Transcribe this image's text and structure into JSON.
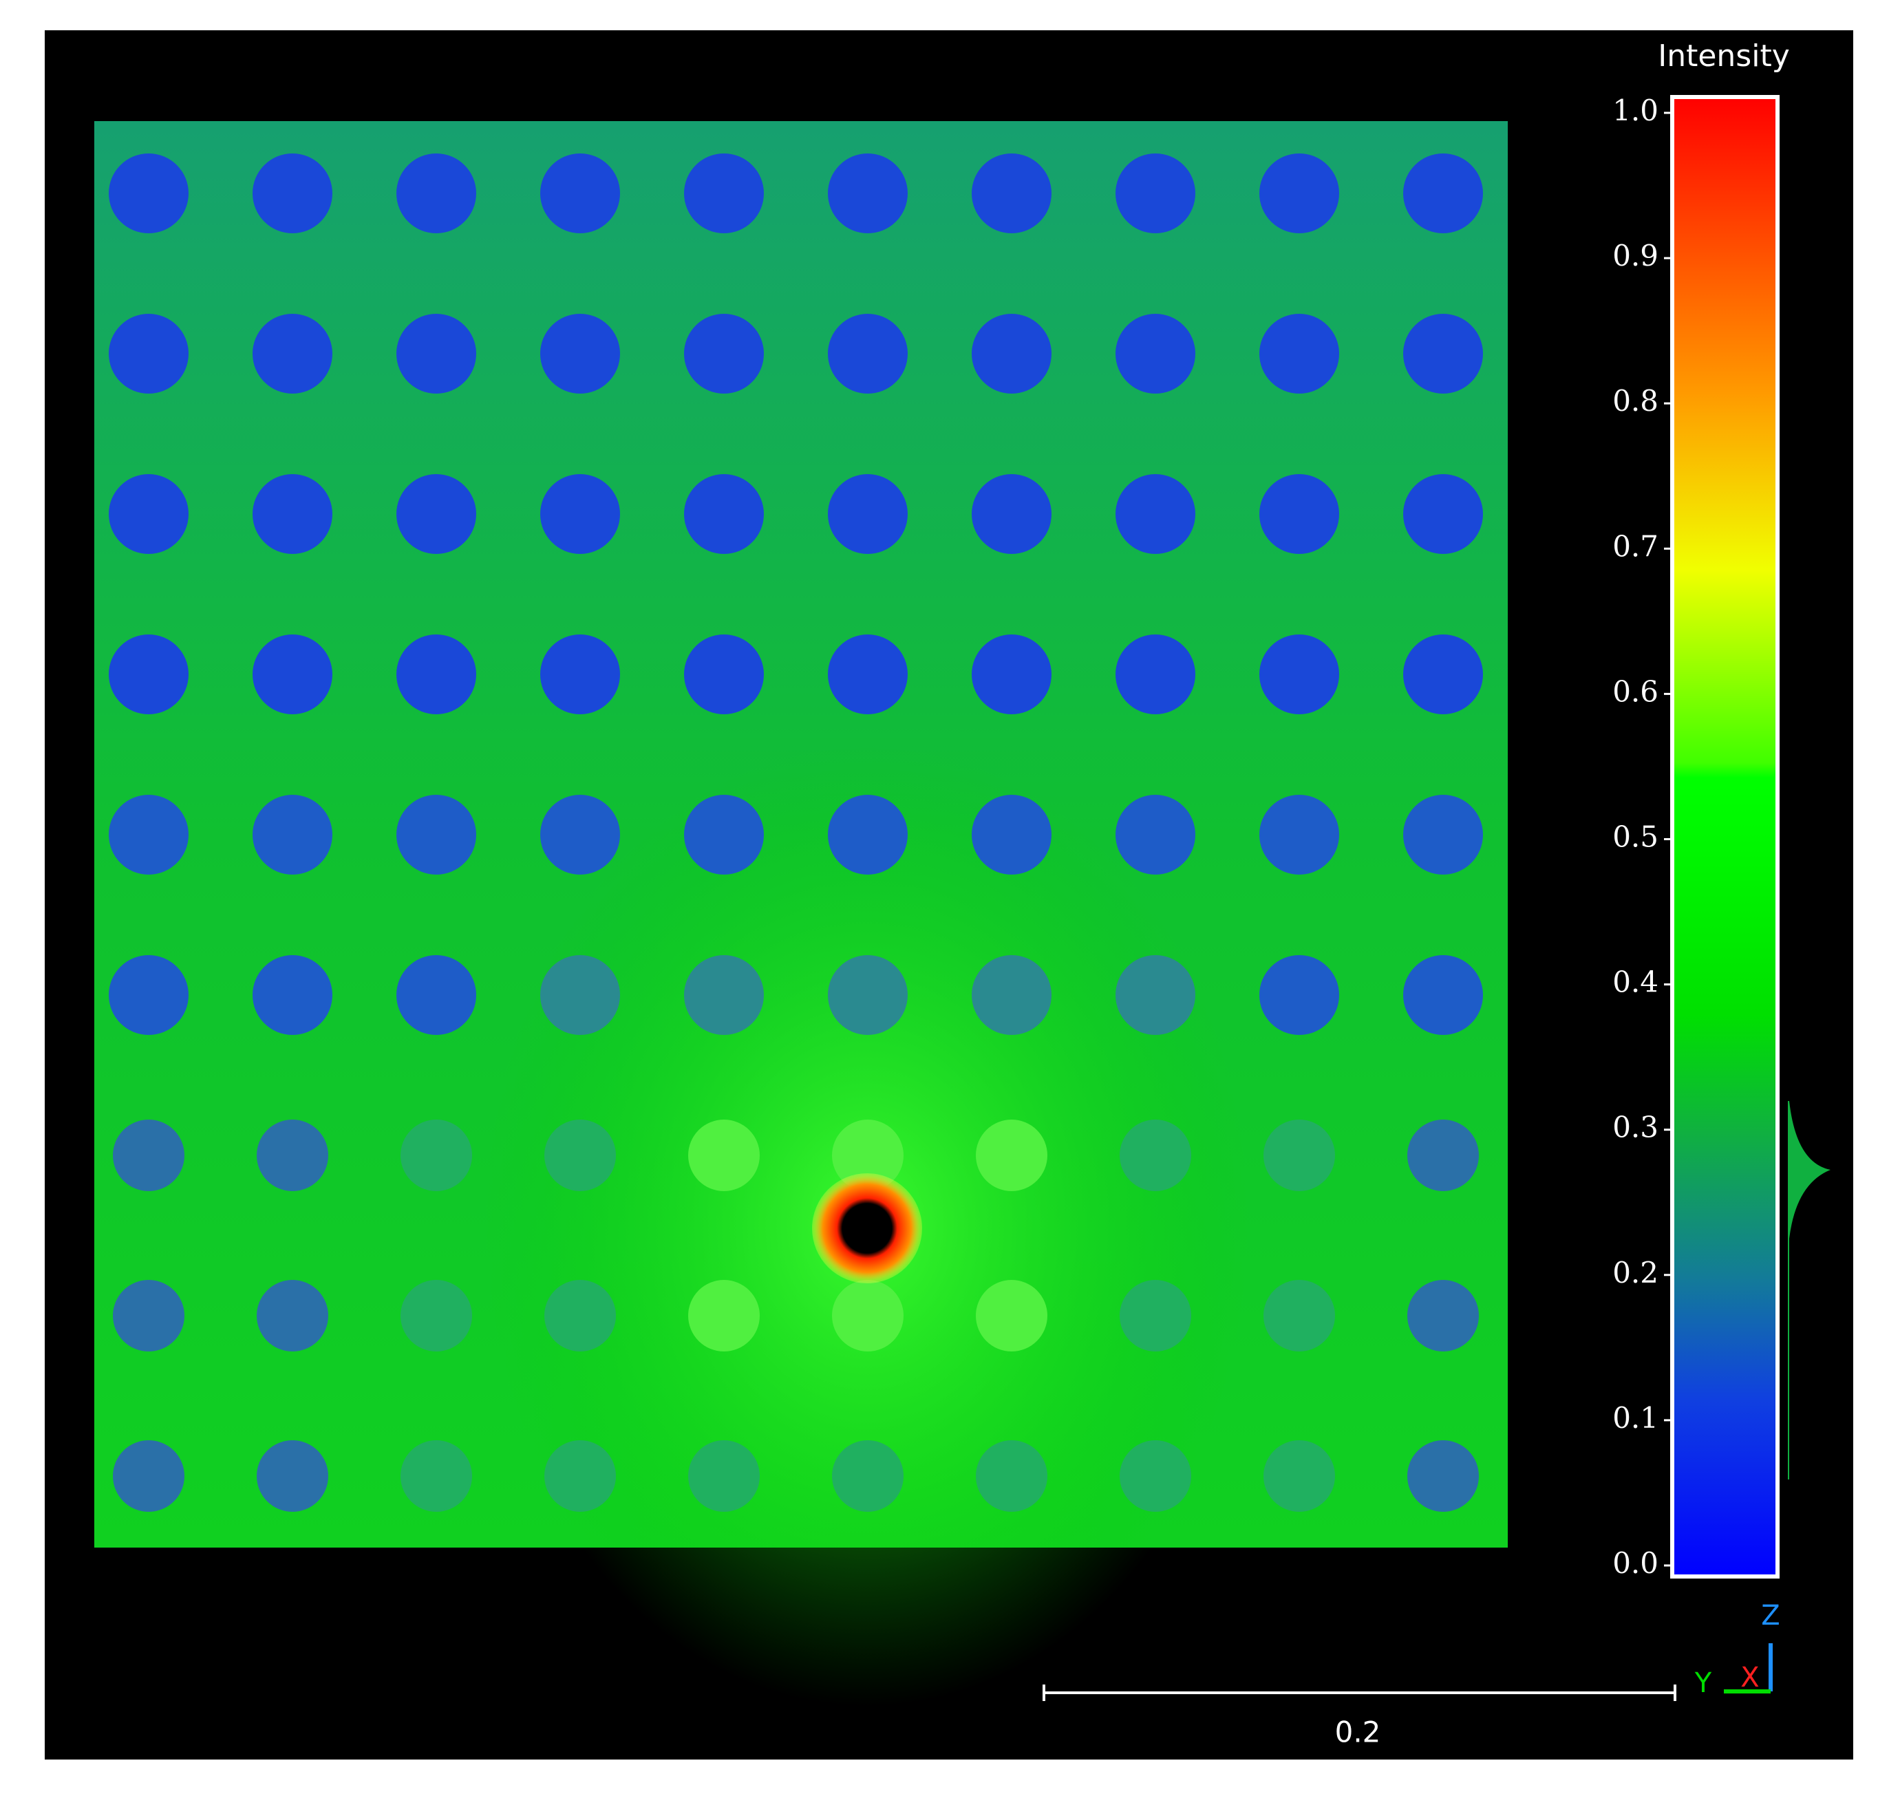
{
  "viewer": {
    "scalar_bar": {
      "title": "Intensity",
      "ticks": [
        {
          "value": 0,
          "label": "0.0"
        },
        0.1,
        0.2,
        0.3,
        0.4,
        0.5,
        0.6,
        0.7,
        0.8,
        0.9,
        {
          "value": 1,
          "label": "1.0"
        }
      ]
    },
    "scale_bar": {
      "label": "0.2"
    },
    "axes": {
      "z": "Z",
      "y": "Y",
      "x": "X"
    }
  }
}
